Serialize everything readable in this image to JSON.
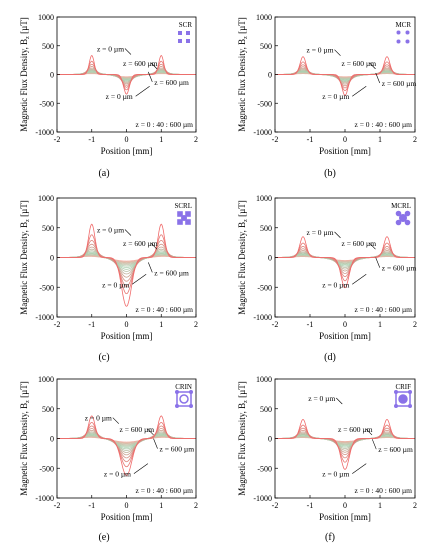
{
  "chart_data": [
    {
      "type": "line",
      "panel": "(a)",
      "title": "SCR",
      "sweep": "z = 0 : 40 : 600 µm",
      "xlabel": "Position [mm]",
      "ylabel": "Magnetic Flux Density, B",
      "ylabel_sub": "z",
      "ylabel_unit": " [µT]",
      "xlim": [
        -2,
        2
      ],
      "ylim": [
        -1000,
        1000
      ],
      "xticks": [
        -2,
        -1,
        0,
        1,
        2
      ],
      "yticks": [
        -1000,
        -500,
        0,
        500,
        1000
      ],
      "series": [
        {
          "z": 0,
          "color": "#f06a6a",
          "peaks": [
            {
              "x": -1.0,
              "h": 330,
              "w": 0.1
            },
            {
              "x": 0.0,
              "h": -340,
              "w": 0.12
            },
            {
              "x": 1.0,
              "h": 330,
              "w": 0.1
            }
          ]
        },
        {
          "z": 600,
          "color": "#f3b0a4",
          "peaks": [
            {
              "x": -1.0,
              "h": 15,
              "w": 0.4
            },
            {
              "x": 0.0,
              "h": -40,
              "w": 0.45
            },
            {
              "x": 1.0,
              "h": 15,
              "w": 0.4
            }
          ]
        }
      ],
      "annotations": [
        {
          "text": "z = 0 µm",
          "x": -0.85,
          "y": 400
        },
        {
          "text": "z = 600 µm",
          "x": -0.1,
          "y": 150
        },
        {
          "text": "z = 600 µm",
          "x": 0.8,
          "y": -180
        },
        {
          "text": "z = 0 µm",
          "x": -0.6,
          "y": -430
        }
      ]
    },
    {
      "type": "line",
      "panel": "(b)",
      "title": "MCR",
      "sweep": "z = 0 : 40 : 600 µm",
      "xlabel": "Position [mm]",
      "ylabel": "Magnetic Flux Density, B",
      "ylabel_sub": "z",
      "ylabel_unit": " [µT]",
      "xlim": [
        -2,
        2
      ],
      "ylim": [
        -1000,
        1000
      ],
      "xticks": [
        -2,
        -1,
        0,
        1,
        2
      ],
      "yticks": [
        -1000,
        -500,
        0,
        500,
        1000
      ],
      "series": [
        {
          "z": 0,
          "color": "#f06a6a",
          "peaks": [
            {
              "x": -1.2,
              "h": 310,
              "w": 0.12
            },
            {
              "x": 0.0,
              "h": -360,
              "w": 0.13
            },
            {
              "x": 1.2,
              "h": 310,
              "w": 0.12
            }
          ]
        },
        {
          "z": 600,
          "color": "#f3b0a4",
          "peaks": [
            {
              "x": -1.2,
              "h": 15,
              "w": 0.42
            },
            {
              "x": 0.0,
              "h": -40,
              "w": 0.48
            },
            {
              "x": 1.2,
              "h": 15,
              "w": 0.42
            }
          ]
        }
      ],
      "annotations": [
        {
          "text": "z = 0 µm",
          "x": -1.1,
          "y": 380
        },
        {
          "text": "z = 600 µm",
          "x": -0.1,
          "y": 150
        },
        {
          "text": "z = 600 µm",
          "x": 1.05,
          "y": -200
        },
        {
          "text": "z = 0 µm",
          "x": -0.65,
          "y": -430
        }
      ]
    },
    {
      "type": "line",
      "panel": "(c)",
      "title": "SCRL",
      "sweep": "z = 0 : 40 : 600 µm",
      "xlabel": "Position [mm]",
      "ylabel": "Magnetic Flux Density, B",
      "ylabel_sub": "z",
      "ylabel_unit": " [µT]",
      "xlim": [
        -2,
        2
      ],
      "ylim": [
        -1000,
        1000
      ],
      "xticks": [
        -2,
        -1,
        0,
        1,
        2
      ],
      "yticks": [
        -1000,
        -500,
        0,
        500,
        1000
      ],
      "series": [
        {
          "z": 0,
          "color": "#f06a6a",
          "peaks": [
            {
              "x": -1.0,
              "h": 560,
              "w": 0.13
            },
            {
              "x": 0.0,
              "h": -820,
              "w": 0.2
            },
            {
              "x": 1.0,
              "h": 560,
              "w": 0.13
            }
          ]
        },
        {
          "z": 600,
          "color": "#f3b0a4",
          "peaks": [
            {
              "x": -1.0,
              "h": 20,
              "w": 0.45
            },
            {
              "x": 0.0,
              "h": -60,
              "w": 0.55
            },
            {
              "x": 1.0,
              "h": 20,
              "w": 0.45
            }
          ]
        }
      ],
      "annotations": [
        {
          "text": "z = 0 µm",
          "x": -0.85,
          "y": 420
        },
        {
          "text": "z = 600 µm",
          "x": -0.1,
          "y": 190
        },
        {
          "text": "z = 600 µm",
          "x": 0.8,
          "y": -300
        },
        {
          "text": "z = 0 µm",
          "x": -0.7,
          "y": -500
        }
      ]
    },
    {
      "type": "line",
      "panel": "(d)",
      "title": "MCRL",
      "sweep": "z = 0 : 40 : 600 µm",
      "xlabel": "Position [mm]",
      "ylabel": "Magnetic Flux Density, B",
      "ylabel_sub": "z",
      "ylabel_unit": " [µT]",
      "xlim": [
        -2,
        2
      ],
      "ylim": [
        -1000,
        1000
      ],
      "xticks": [
        -2,
        -1,
        0,
        1,
        2
      ],
      "yticks": [
        -1000,
        -500,
        0,
        500,
        1000
      ],
      "series": [
        {
          "z": 0,
          "color": "#f06a6a",
          "peaks": [
            {
              "x": -1.2,
              "h": 350,
              "w": 0.13
            },
            {
              "x": 0.0,
              "h": -510,
              "w": 0.16
            },
            {
              "x": 1.2,
              "h": 350,
              "w": 0.13
            }
          ]
        },
        {
          "z": 600,
          "color": "#f3b0a4",
          "peaks": [
            {
              "x": -1.2,
              "h": 15,
              "w": 0.45
            },
            {
              "x": 0.0,
              "h": -50,
              "w": 0.52
            },
            {
              "x": 1.2,
              "h": 15,
              "w": 0.45
            }
          ]
        }
      ],
      "annotations": [
        {
          "text": "z = 0 µm",
          "x": -1.1,
          "y": 380
        },
        {
          "text": "z = 600 µm",
          "x": -0.1,
          "y": 190
        },
        {
          "text": "z = 600 µm",
          "x": 1.05,
          "y": -220
        },
        {
          "text": "z = 0 µm",
          "x": -0.65,
          "y": -500
        }
      ]
    },
    {
      "type": "line",
      "panel": "(e)",
      "title": "CRIN",
      "sweep": "z = 0 : 40 : 600 µm",
      "xlabel": "Position [mm]",
      "ylabel": "Magnetic Flux Density, B",
      "ylabel_sub": "z",
      "ylabel_unit": " [µT]",
      "xlim": [
        -2,
        2
      ],
      "ylim": [
        -1000,
        1000
      ],
      "xticks": [
        -2,
        -1,
        0,
        1,
        2
      ],
      "yticks": [
        -1000,
        -500,
        0,
        500,
        1000
      ],
      "series": [
        {
          "z": 0,
          "color": "#f06a6a",
          "peaks": [
            {
              "x": -1.0,
              "h": 380,
              "w": 0.13
            },
            {
              "x": 0.0,
              "h": -620,
              "w": 0.22
            },
            {
              "x": 1.0,
              "h": 380,
              "w": 0.13
            }
          ]
        },
        {
          "z": 600,
          "color": "#f3b0a4",
          "peaks": [
            {
              "x": -1.0,
              "h": 20,
              "w": 0.45
            },
            {
              "x": 0.0,
              "h": -60,
              "w": 0.55
            },
            {
              "x": 1.0,
              "h": 20,
              "w": 0.45
            }
          ]
        }
      ],
      "annotations": [
        {
          "text": "z = 0 µm",
          "x": -1.2,
          "y": 300
        },
        {
          "text": "z = 600 µm",
          "x": -0.2,
          "y": 110
        },
        {
          "text": "z = 600 µm",
          "x": 0.95,
          "y": -220
        },
        {
          "text": "z = 0 µm",
          "x": -0.65,
          "y": -640
        }
      ]
    },
    {
      "type": "line",
      "panel": "(f)",
      "title": "CRIF",
      "sweep": "z = 0 : 40 : 600 µm",
      "xlabel": "Position [mm]",
      "ylabel": "Magnetic Flux Density, B",
      "ylabel_sub": "z",
      "ylabel_unit": " [µT]",
      "xlim": [
        -2,
        2
      ],
      "ylim": [
        -1000,
        1000
      ],
      "xticks": [
        -2,
        -1,
        0,
        1,
        2
      ],
      "yticks": [
        -1000,
        -500,
        0,
        500,
        1000
      ],
      "series": [
        {
          "z": 0,
          "color": "#f06a6a",
          "peaks": [
            {
              "x": -1.2,
              "h": 320,
              "w": 0.13
            },
            {
              "x": 0.0,
              "h": -520,
              "w": 0.17
            },
            {
              "x": 1.2,
              "h": 320,
              "w": 0.13
            }
          ]
        },
        {
          "z": 600,
          "color": "#f3b0a4",
          "peaks": [
            {
              "x": -1.2,
              "h": 15,
              "w": 0.45
            },
            {
              "x": 0.0,
              "h": -50,
              "w": 0.52
            },
            {
              "x": 1.2,
              "h": 15,
              "w": 0.45
            }
          ]
        }
      ],
      "annotations": [
        {
          "text": "z = 0 µm",
          "x": -1.05,
          "y": 630
        },
        {
          "text": "z = 600 µm",
          "x": -0.2,
          "y": 110
        },
        {
          "text": "z = 600 µm",
          "x": 0.95,
          "y": -230
        },
        {
          "text": "z = 0 µm",
          "x": -0.65,
          "y": -640
        }
      ]
    }
  ],
  "palette": {
    "curve_low_z": "#f06a6a",
    "curve_mid_z": "#a8d4b4",
    "curve_high_z": "#f3b0a4",
    "icon": "#8a72e8"
  },
  "panel_icons": [
    "square-pads-icon",
    "circle-pads-icon",
    "square-pads-large-icon",
    "circle-pads-large-icon",
    "ring-inner-icon",
    "ring-inner-filled-icon"
  ]
}
